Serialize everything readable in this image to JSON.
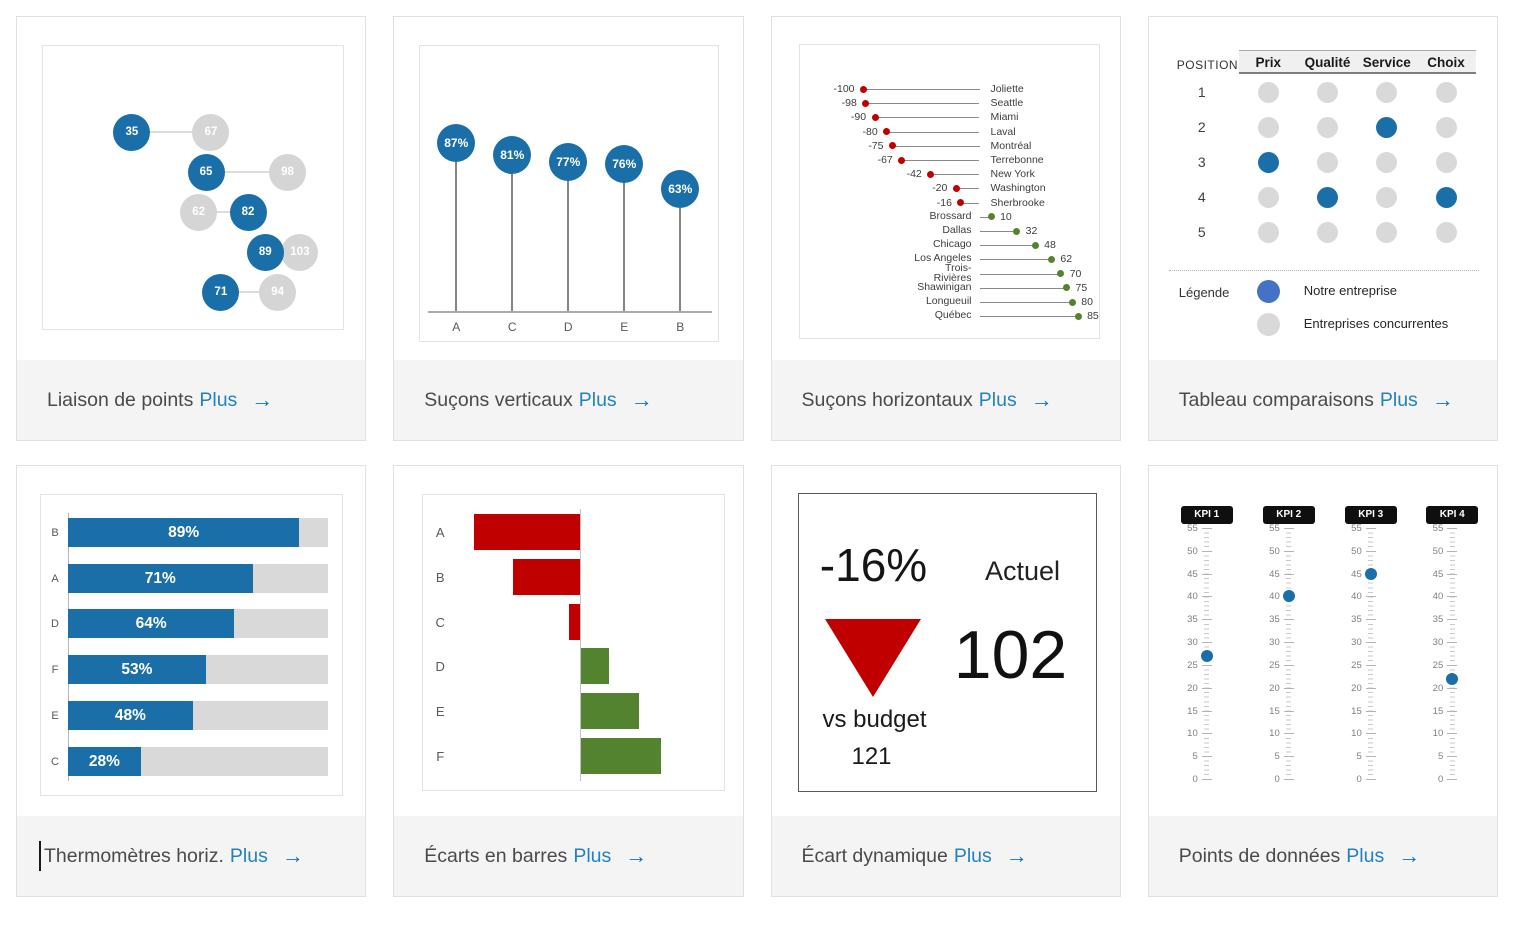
{
  "ui": {
    "more_label": "Plus",
    "more_arrow": "→"
  },
  "colors": {
    "blue": "#1a6fa8",
    "legend_blue": "#4472c4",
    "gray": "#d5d5d5",
    "red": "#c00000",
    "green": "#54832f",
    "link": "#2382bd",
    "arrow": "#0e70b8",
    "title_text": "#4a4a4a"
  },
  "cards": [
    {
      "title": "Liaison de points"
    },
    {
      "title": "Suçons verticaux"
    },
    {
      "title": "Suçons horizontaux"
    },
    {
      "title": "Tableau comparaisons"
    },
    {
      "title": "Thermomètres horiz."
    },
    {
      "title": "Écarts en barres"
    },
    {
      "title": "Écart dynamique"
    },
    {
      "title": "Points de données"
    }
  ],
  "chart_data": [
    {
      "type": "dot_link",
      "title": "Liaison de points",
      "series": [
        "blue",
        "gray"
      ],
      "rows": [
        {
          "blue": 35,
          "gray": 67
        },
        {
          "blue": 65,
          "gray": 98
        },
        {
          "blue": 82,
          "gray": 62
        },
        {
          "blue": 89,
          "gray": 103
        },
        {
          "blue": 71,
          "gray": 94
        }
      ]
    },
    {
      "type": "lollipop_vertical",
      "title": "Suçons verticaux",
      "categories": [
        "A",
        "C",
        "D",
        "E",
        "B"
      ],
      "values": [
        87,
        81,
        77,
        76,
        63
      ],
      "unit": "%"
    },
    {
      "type": "lollipop_horizontal",
      "title": "Suçons horizontaux",
      "items": [
        [
          "Joliette",
          -100
        ],
        [
          "Seattle",
          -98
        ],
        [
          "Miami",
          -90
        ],
        [
          "Laval",
          -80
        ],
        [
          "Montréal",
          -75
        ],
        [
          "Terrebonne",
          -67
        ],
        [
          "New York",
          -42
        ],
        [
          "Washington",
          -20
        ],
        [
          "Sherbrooke",
          -16
        ],
        [
          "Brossard",
          10
        ],
        [
          "Dallas",
          32
        ],
        [
          "Chicago",
          48
        ],
        [
          "Los Angeles",
          62
        ],
        [
          "Trois-Rivières",
          70
        ],
        [
          "Shawinigan",
          75
        ],
        [
          "Longueuil",
          80
        ],
        [
          "Québec",
          85
        ]
      ]
    },
    {
      "type": "dot_table",
      "title": "Tableau comparaisons",
      "corner": "POSITION",
      "columns": [
        "Prix",
        "Qualité",
        "Service",
        "Choix"
      ],
      "rows": [
        {
          "position": "1",
          "dots": [
            0,
            0,
            0,
            0
          ]
        },
        {
          "position": "2",
          "dots": [
            0,
            0,
            1,
            0
          ]
        },
        {
          "position": "3",
          "dots": [
            1,
            0,
            0,
            0
          ]
        },
        {
          "position": "4",
          "dots": [
            0,
            1,
            0,
            1
          ]
        },
        {
          "position": "5",
          "dots": [
            0,
            0,
            0,
            0
          ]
        }
      ],
      "legend_title": "Légende",
      "legend": [
        {
          "label": "Notre entreprise",
          "color": "#4472c4"
        },
        {
          "label": "Entreprises concurrentes",
          "color": "#d9d9d9"
        }
      ]
    },
    {
      "type": "thermometer",
      "title": "Thermomètres horiz.",
      "categories": [
        "B",
        "A",
        "D",
        "F",
        "E",
        "C"
      ],
      "values": [
        89,
        71,
        64,
        53,
        48,
        28
      ],
      "unit": "%",
      "max": 100
    },
    {
      "type": "diverging_bars",
      "title": "Écarts en barres",
      "categories": [
        "A",
        "B",
        "C",
        "D",
        "E",
        "F"
      ],
      "values": [
        -57,
        -36,
        -6,
        15,
        31,
        43
      ]
    },
    {
      "type": "kpi_variance",
      "title": "Écart dynamique",
      "variance": "-16%",
      "direction": "down",
      "actual_label": "Actuel",
      "actual_value": "102",
      "vs_label": "vs budget",
      "vs_value": "121"
    },
    {
      "type": "kpi_points",
      "title": "Points de données",
      "axis": {
        "min": 0,
        "max": 55,
        "step": 5
      },
      "kpis": [
        {
          "label": "KPI 1",
          "value": 27
        },
        {
          "label": "KPI 2",
          "value": 40
        },
        {
          "label": "KPI 3",
          "value": 45
        },
        {
          "label": "KPI 4",
          "value": 22
        }
      ]
    }
  ]
}
